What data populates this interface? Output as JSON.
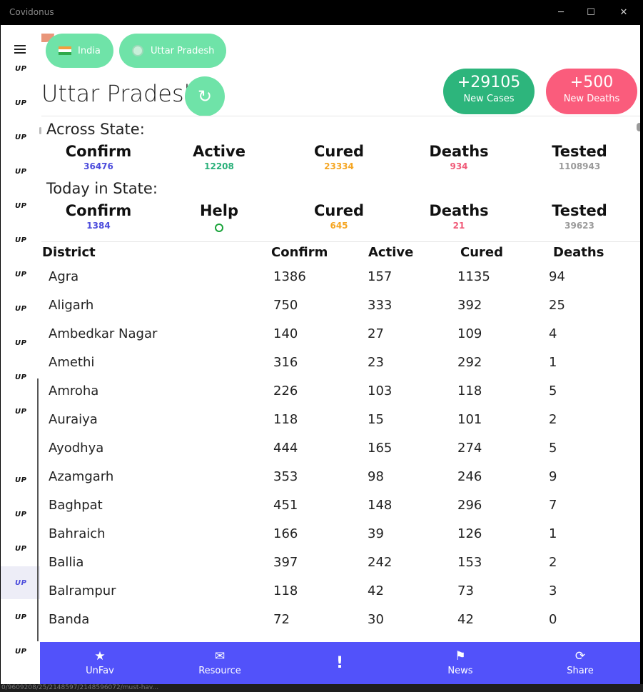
{
  "window": {
    "title": "Covidonus",
    "minimize": "─",
    "maximize": "☐",
    "close": "✕"
  },
  "sidebar": {
    "items": [
      "UP",
      "UP",
      "UP",
      "UP",
      "UP",
      "UP",
      "UP",
      "UP",
      "UP",
      "UP",
      "UP",
      "UP",
      "UP",
      "UP",
      "UP",
      "UP",
      "UP",
      "UP"
    ],
    "selected_index": 15
  },
  "breadcrumbs": {
    "country": "India",
    "state": "Uttar Pradesh"
  },
  "header": {
    "title": "Uttar Pradesh",
    "refresh_icon": "↻",
    "new_cases_value": "+29105",
    "new_cases_label": "New Cases",
    "new_deaths_value": "+500",
    "new_deaths_label": "New Deaths"
  },
  "colors": {
    "confirm": "#4c4cdc",
    "active": "#2ab07a",
    "cured": "#f5a623",
    "deaths": "#f05a78",
    "tested": "#9a9a9a",
    "help": "#1aa33a",
    "green_pill": "#6fe3a8",
    "cases_pill": "#2db57c",
    "deaths_pill": "#fa5c7c",
    "nav": "#5252fa"
  },
  "across_state": {
    "title": "Across State:",
    "stats": [
      {
        "label": "Confirm",
        "value": "36476"
      },
      {
        "label": "Active",
        "value": "12208"
      },
      {
        "label": "Cured",
        "value": "23334"
      },
      {
        "label": "Deaths",
        "value": "934"
      },
      {
        "label": "Tested",
        "value": "1108943"
      }
    ]
  },
  "today_state": {
    "title": "Today in State:",
    "stats": [
      {
        "label": "Confirm",
        "value": "1384"
      },
      {
        "label": "Help",
        "value": ""
      },
      {
        "label": "Cured",
        "value": "645"
      },
      {
        "label": "Deaths",
        "value": "21"
      },
      {
        "label": "Tested",
        "value": "39623"
      }
    ]
  },
  "table": {
    "headers": [
      "District",
      "Confirm",
      "Active",
      "Cured",
      "Deaths"
    ],
    "rows": [
      [
        "Agra",
        "1386",
        "157",
        "1135",
        "94"
      ],
      [
        "Aligarh",
        "750",
        "333",
        "392",
        "25"
      ],
      [
        "Ambedkar Nagar",
        "140",
        "27",
        "109",
        "4"
      ],
      [
        "Amethi",
        "316",
        "23",
        "292",
        "1"
      ],
      [
        "Amroha",
        "226",
        "103",
        "118",
        "5"
      ],
      [
        "Auraiya",
        "118",
        "15",
        "101",
        "2"
      ],
      [
        "Ayodhya",
        "444",
        "165",
        "274",
        "5"
      ],
      [
        "Azamgarh",
        "353",
        "98",
        "246",
        "9"
      ],
      [
        "Baghpat",
        "451",
        "148",
        "296",
        "7"
      ],
      [
        "Bahraich",
        "166",
        "39",
        "126",
        "1"
      ],
      [
        "Ballia",
        "397",
        "242",
        "153",
        "2"
      ],
      [
        "Balrampur",
        "118",
        "42",
        "73",
        "3"
      ],
      [
        "Banda",
        "72",
        "30",
        "42",
        "0"
      ]
    ]
  },
  "bottom_nav": {
    "items": [
      {
        "icon": "★",
        "label": "UnFav"
      },
      {
        "icon": "✉",
        "label": "Resource"
      },
      {
        "icon": "!",
        "label": ""
      },
      {
        "icon": "⚑",
        "label": "News"
      },
      {
        "icon": "⟳",
        "label": "Share"
      }
    ]
  },
  "status_url": "0/9609208/25/2148597/2148596072/must-hav..."
}
